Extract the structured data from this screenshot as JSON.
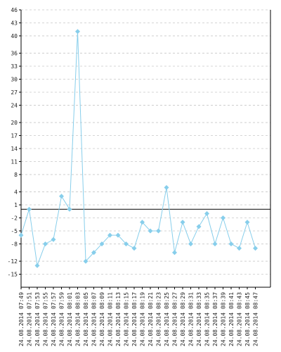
{
  "chart_data": {
    "type": "line",
    "title": "",
    "xlabel": "",
    "ylabel": "",
    "ylim": [
      -18,
      46
    ],
    "y_ticks": [
      -15,
      -12,
      -8,
      -5,
      -2,
      1,
      4,
      8,
      11,
      14,
      17,
      20,
      24,
      27,
      30,
      33,
      36,
      40,
      43,
      46
    ],
    "reference_line_y": 0,
    "grid": true,
    "legend": "none",
    "categories": [
      "24.08.2014 07:49",
      "24.08.2014 07:51",
      "24.08.2014 07:53",
      "24.08.2014 07:55",
      "24.08.2014 07:57",
      "24.08.2014 07:59",
      "24.08.2014 08:01",
      "24.08.2014 08:03",
      "24.08.2014 08:05",
      "24.08.2014 08:07",
      "24.08.2014 08:09",
      "24.08.2014 08:11",
      "24.08.2014 08:13",
      "24.08.2014 08:15",
      "24.08.2014 08:17",
      "24.08.2014 08:19",
      "24.08.2014 08:21",
      "24.08.2014 08:23",
      "24.08.2014 08:25",
      "24.08.2014 08:27",
      "24.08.2014 08:29",
      "24.08.2014 08:31",
      "24.08.2014 08:33",
      "24.08.2014 08:35",
      "24.08.2014 08:37",
      "24.08.2014 08:39",
      "24.08.2014 08:41",
      "24.08.2014 08:43",
      "24.08.2014 08:45",
      "24.08.2014 08:47"
    ],
    "series": [
      {
        "color": "#87ceeb",
        "marker_color": "#87ceeb",
        "values": [
          -6,
          0,
          -13,
          -8,
          -7,
          3,
          0,
          41,
          -12,
          -10,
          -8,
          -6,
          -6,
          -8,
          -9,
          -3,
          -5,
          -5,
          5,
          -10,
          -3,
          -8,
          -4,
          -1,
          -8,
          -2,
          -8,
          -9,
          -3,
          -9
        ]
      }
    ]
  }
}
